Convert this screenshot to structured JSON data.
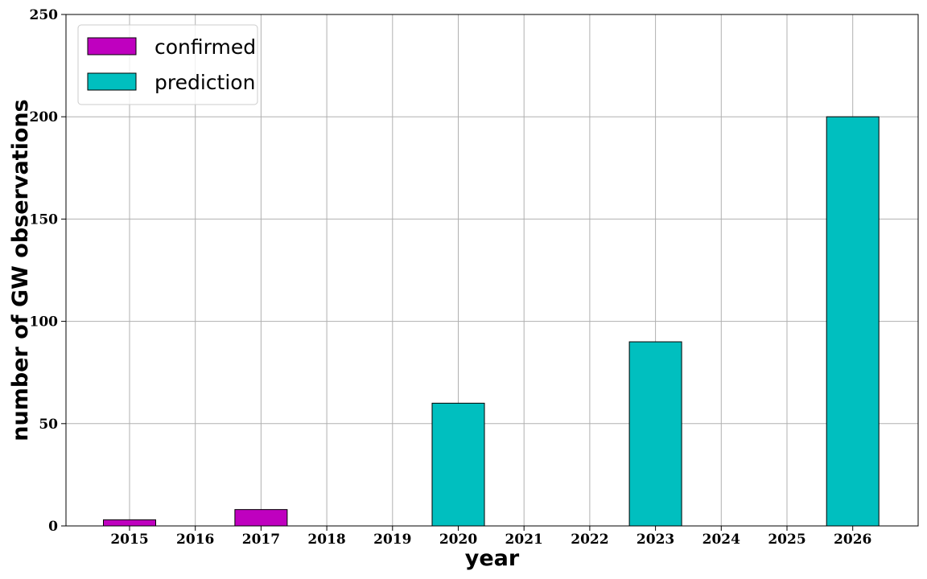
{
  "chart_data": {
    "type": "bar",
    "categories": [
      "2015",
      "2016",
      "2017",
      "2018",
      "2019",
      "2020",
      "2021",
      "2022",
      "2023",
      "2024",
      "2025",
      "2026"
    ],
    "series": [
      {
        "name": "confirmed",
        "color": "#bf00bf",
        "values": [
          3,
          0,
          8,
          0,
          0,
          0,
          0,
          0,
          0,
          0,
          0,
          0
        ]
      },
      {
        "name": "prediction",
        "color": "#00bfbf",
        "values": [
          0,
          0,
          0,
          0,
          0,
          60,
          0,
          0,
          90,
          0,
          0,
          200
        ]
      }
    ],
    "title": "",
    "xlabel": "year",
    "ylabel": "number of GW observations",
    "ylim": [
      0,
      250
    ],
    "yticks": [
      0,
      50,
      100,
      150,
      200,
      250
    ],
    "grid": true,
    "legend_position": "top-left"
  }
}
